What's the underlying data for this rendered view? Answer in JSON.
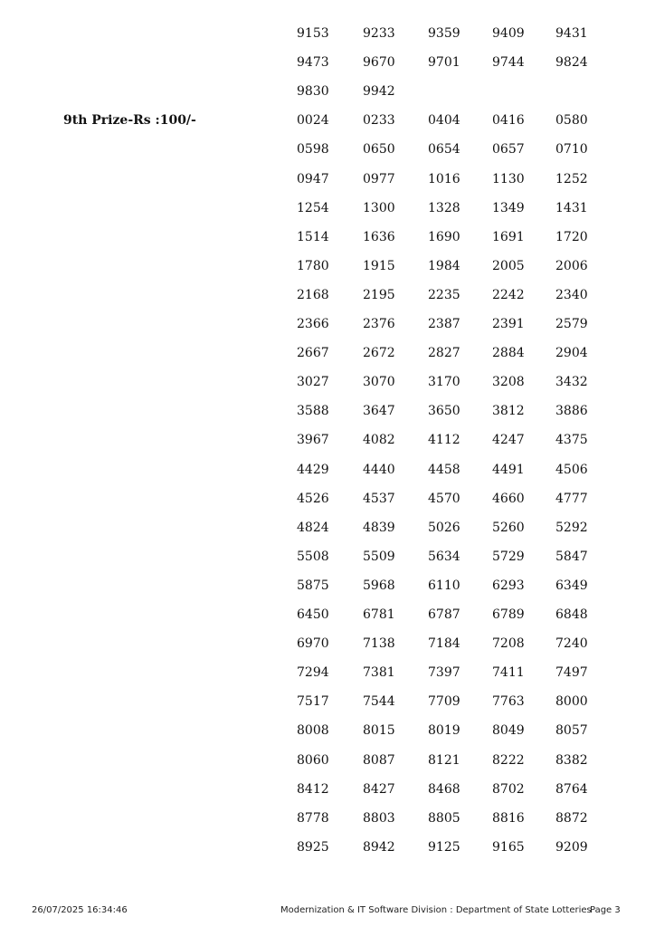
{
  "continued_numbers": [
    [
      "9153",
      "9233",
      "9359",
      "9409",
      "9431"
    ],
    [
      "9473",
      "9670",
      "9701",
      "9744",
      "9824"
    ],
    [
      "9830",
      "9942"
    ]
  ],
  "prize": {
    "label": "9th Prize-Rs :100/-",
    "numbers": [
      [
        "0024",
        "0233",
        "0404",
        "0416",
        "0580"
      ],
      [
        "0598",
        "0650",
        "0654",
        "0657",
        "0710"
      ],
      [
        "0947",
        "0977",
        "1016",
        "1130",
        "1252"
      ],
      [
        "1254",
        "1300",
        "1328",
        "1349",
        "1431"
      ],
      [
        "1514",
        "1636",
        "1690",
        "1691",
        "1720"
      ],
      [
        "1780",
        "1915",
        "1984",
        "2005",
        "2006"
      ],
      [
        "2168",
        "2195",
        "2235",
        "2242",
        "2340"
      ],
      [
        "2366",
        "2376",
        "2387",
        "2391",
        "2579"
      ],
      [
        "2667",
        "2672",
        "2827",
        "2884",
        "2904"
      ],
      [
        "3027",
        "3070",
        "3170",
        "3208",
        "3432"
      ],
      [
        "3588",
        "3647",
        "3650",
        "3812",
        "3886"
      ],
      [
        "3967",
        "4082",
        "4112",
        "4247",
        "4375"
      ],
      [
        "4429",
        "4440",
        "4458",
        "4491",
        "4506"
      ],
      [
        "4526",
        "4537",
        "4570",
        "4660",
        "4777"
      ],
      [
        "4824",
        "4839",
        "5026",
        "5260",
        "5292"
      ],
      [
        "5508",
        "5509",
        "5634",
        "5729",
        "5847"
      ],
      [
        "5875",
        "5968",
        "6110",
        "6293",
        "6349"
      ],
      [
        "6450",
        "6781",
        "6787",
        "6789",
        "6848"
      ],
      [
        "6970",
        "7138",
        "7184",
        "7208",
        "7240"
      ],
      [
        "7294",
        "7381",
        "7397",
        "7411",
        "7497"
      ],
      [
        "7517",
        "7544",
        "7709",
        "7763",
        "8000"
      ],
      [
        "8008",
        "8015",
        "8019",
        "8049",
        "8057"
      ],
      [
        "8060",
        "8087",
        "8121",
        "8222",
        "8382"
      ],
      [
        "8412",
        "8427",
        "8468",
        "8702",
        "8764"
      ],
      [
        "8778",
        "8803",
        "8805",
        "8816",
        "8872"
      ],
      [
        "8925",
        "8942",
        "9125",
        "9165",
        "9209"
      ]
    ]
  },
  "footer": {
    "timestamp": "26/07/2025 16:34:46",
    "division": "Modernization & IT Software Division : Department of State Lotteries",
    "page": "Page 3"
  }
}
